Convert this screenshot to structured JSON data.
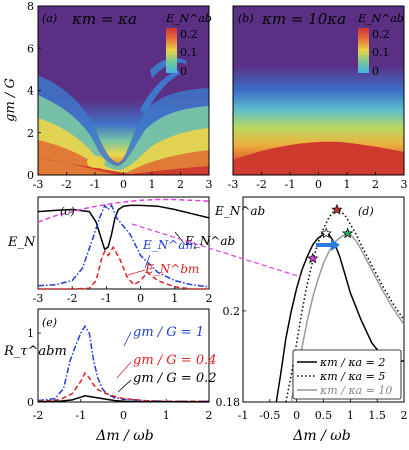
{
  "chart_data": [
    {
      "panel": "(a)",
      "type": "heatmap",
      "annotation": "κm = κa",
      "colorbar": {
        "label": "E_N^ab",
        "ticks": [
          "0.2",
          "0.1",
          "0"
        ]
      },
      "xlabel": "",
      "ylabel": "gm / G",
      "xlim": [
        -3,
        3
      ],
      "ylim": [
        0,
        8
      ],
      "xticks": [
        "-3",
        "-2",
        "-1",
        "0",
        "1",
        "2",
        "3"
      ],
      "yticks": [
        "0",
        "2",
        "4",
        "6",
        "8"
      ]
    },
    {
      "panel": "(b)",
      "type": "heatmap",
      "annotation": "κm = 10κa",
      "colorbar": {
        "label": "E_N^ab",
        "ticks": [
          "0.2",
          "0.1",
          "0"
        ]
      },
      "xlim": [
        -3,
        3
      ],
      "ylim": [
        0,
        8
      ],
      "xticks": [
        "-3",
        "-2",
        "-1",
        "0",
        "1",
        "2",
        "3"
      ]
    },
    {
      "panel": "(c)",
      "type": "line",
      "ylabel": "E_N",
      "xlim": [
        -3,
        2
      ],
      "ylim": [
        0,
        0.22
      ],
      "xticks": [
        "-3",
        "-2",
        "-1",
        "0",
        "1",
        "2"
      ],
      "series": [
        {
          "name": "E_N^ab",
          "style": "solid",
          "color": "#000000",
          "x": [
            -3,
            -2.5,
            -2,
            -1.5,
            -1.3,
            -1.15,
            -1.05,
            -0.95,
            -0.85,
            -0.75,
            -0.65,
            -0.5,
            -0.3,
            0,
            0.5,
            1,
            1.5,
            2
          ],
          "y": [
            0.185,
            0.188,
            0.19,
            0.185,
            0.16,
            0.12,
            0.095,
            0.1,
            0.13,
            0.17,
            0.19,
            0.198,
            0.2,
            0.2,
            0.198,
            0.19,
            0.18,
            0.17
          ]
        },
        {
          "name": "E_N^am",
          "style": "dashdot",
          "color": "#1f3fd9",
          "x": [
            -3,
            -2.5,
            -2,
            -1.7,
            -1.4,
            -1.2,
            -1.05,
            -0.95,
            -0.85,
            -0.7,
            -0.5,
            -0.3,
            0,
            0.5,
            1,
            1.5,
            2
          ],
          "y": [
            0.008,
            0.01,
            0.02,
            0.05,
            0.12,
            0.17,
            0.2,
            0.19,
            0.2,
            0.17,
            0.15,
            0.13,
            0.08,
            0.04,
            0.02,
            0.01,
            0.005
          ]
        },
        {
          "name": "E_N^bm",
          "style": "dashed",
          "color": "#e02020",
          "x": [
            -3,
            -2,
            -1.5,
            -1.3,
            -1.15,
            -1.05,
            -0.95,
            -0.8,
            -0.6,
            -0.4,
            -0.2,
            0,
            0.2,
            0.5,
            1,
            1.5,
            2
          ],
          "y": [
            0,
            0,
            0.002,
            0.02,
            0.07,
            0.09,
            0.08,
            0.1,
            0.07,
            0.03,
            0.01,
            0.02,
            0.04,
            0.02,
            0.005,
            0,
            0
          ]
        },
        {
          "name": "",
          "style": "dashed",
          "color": "#e040e0",
          "x": [
            -3,
            -2.5,
            -2,
            -1.5,
            -1,
            -0.5,
            0,
            0.5,
            1,
            1.5,
            2
          ],
          "y": [
            0.16,
            0.175,
            0.185,
            0.195,
            0.202,
            0.208,
            0.212,
            0.214,
            0.214,
            0.212,
            0.21
          ]
        }
      ]
    },
    {
      "panel": "(e)",
      "type": "line",
      "ylabel": "R_τ^abm",
      "xlabel": "Δm / ωb",
      "xlim": [
        -2,
        2
      ],
      "ylim": [
        0,
        1.35
      ],
      "xticks": [
        "-2",
        "-1",
        "0",
        "1",
        "2"
      ],
      "yticks": [
        "0",
        "1"
      ],
      "series": [
        {
          "name": "gm / G = 1",
          "style": "dashdot",
          "color": "#1f3fd9",
          "x": [
            -2,
            -1.6,
            -1.4,
            -1.25,
            -1.1,
            -1.0,
            -0.9,
            -0.8,
            -0.7,
            -0.6,
            -0.5,
            -0.4,
            -0.2,
            0,
            0.5,
            1,
            1.5,
            2
          ],
          "y": [
            0.02,
            0.05,
            0.2,
            0.6,
            0.85,
            1.0,
            1.1,
            1.0,
            0.6,
            0.35,
            0.2,
            0.12,
            0.06,
            0.04,
            0.02,
            0.01,
            0.01,
            0.01
          ]
        },
        {
          "name": "gm / G = 0.4",
          "style": "dashed",
          "color": "#e02020",
          "x": [
            -2,
            -1.5,
            -1.2,
            -1.0,
            -0.9,
            -0.8,
            -0.7,
            -0.6,
            -0.4,
            -0.2,
            0,
            0.5,
            1,
            1.5,
            2
          ],
          "y": [
            0.01,
            0.03,
            0.12,
            0.3,
            0.42,
            0.35,
            0.25,
            0.18,
            0.12,
            0.08,
            0.05,
            0.02,
            0.01,
            0.01,
            0.01
          ]
        },
        {
          "name": "gm / G = 0.2",
          "style": "solid",
          "color": "#000000",
          "x": [
            -2,
            -1.5,
            -1.2,
            -1.0,
            -0.9,
            -0.8,
            -0.6,
            -0.4,
            -0.2,
            0,
            0.5,
            1,
            1.5,
            2
          ],
          "y": [
            0.005,
            0.01,
            0.03,
            0.07,
            0.09,
            0.08,
            0.06,
            0.04,
            0.02,
            0.01,
            0.005,
            0.003,
            0.002,
            0.002
          ]
        }
      ]
    },
    {
      "panel": "(d)",
      "type": "line",
      "ylabel": "E_N^ab",
      "xlabel": "Δm / ωb",
      "xlim": [
        -1,
        2
      ],
      "ylim": [
        0.18,
        0.225
      ],
      "xticks": [
        "-1",
        "-0.5",
        "0",
        "0.5",
        "1",
        "1.5",
        "2"
      ],
      "yticks": [
        "0.18",
        "0.2"
      ],
      "legend": "bottom-right",
      "series": [
        {
          "name": "κm / κa = 2",
          "style": "solid",
          "color": "#000000",
          "x": [
            -0.38,
            -0.3,
            -0.2,
            -0.1,
            0,
            0.1,
            0.2,
            0.3,
            0.4,
            0.5,
            0.55,
            0.6,
            0.7,
            0.8,
            0.9,
            1.0,
            1.2,
            1.4,
            1.6,
            1.8,
            2.0
          ],
          "y": [
            0.18,
            0.186,
            0.194,
            0.2,
            0.205,
            0.209,
            0.212,
            0.2145,
            0.216,
            0.2168,
            0.217,
            0.2168,
            0.215,
            0.212,
            0.208,
            0.204,
            0.198,
            0.193,
            0.19,
            0.189,
            0.189
          ]
        },
        {
          "name": "κm / κa = 5",
          "style": "dotted",
          "color": "#000000",
          "x": [
            -0.2,
            -0.1,
            0,
            0.1,
            0.2,
            0.3,
            0.4,
            0.5,
            0.6,
            0.7,
            0.75,
            0.8,
            0.9,
            1.0,
            1.1,
            1.2,
            1.4,
            1.6,
            1.8,
            2.0
          ],
          "y": [
            0.18,
            0.186,
            0.193,
            0.2,
            0.206,
            0.211,
            0.215,
            0.218,
            0.2205,
            0.222,
            0.2222,
            0.222,
            0.221,
            0.219,
            0.217,
            0.2145,
            0.21,
            0.2055,
            0.2015,
            0.198
          ]
        },
        {
          "name": "κm / κa = 10",
          "style": "solid",
          "color": "#999999",
          "x": [
            -0.1,
            0,
            0.1,
            0.2,
            0.3,
            0.4,
            0.5,
            0.6,
            0.7,
            0.8,
            0.9,
            0.95,
            1.0,
            1.1,
            1.2,
            1.4,
            1.6,
            1.8,
            2.0
          ],
          "y": [
            0.18,
            0.186,
            0.192,
            0.198,
            0.203,
            0.207,
            0.2105,
            0.213,
            0.215,
            0.216,
            0.2168,
            0.217,
            0.2168,
            0.2155,
            0.2135,
            0.209,
            0.2045,
            0.2005,
            0.197
          ]
        }
      ],
      "markers": [
        {
          "kind": "star",
          "color": "#ffffff",
          "x": 0.55,
          "y": 0.217
        },
        {
          "kind": "star",
          "color": "#c0392b",
          "x": 0.75,
          "y": 0.2222
        },
        {
          "kind": "star",
          "color": "#27ae60",
          "x": 0.95,
          "y": 0.217
        },
        {
          "kind": "star",
          "color": "#d63bd6",
          "x": 0.3,
          "y": 0.2115
        }
      ]
    }
  ]
}
